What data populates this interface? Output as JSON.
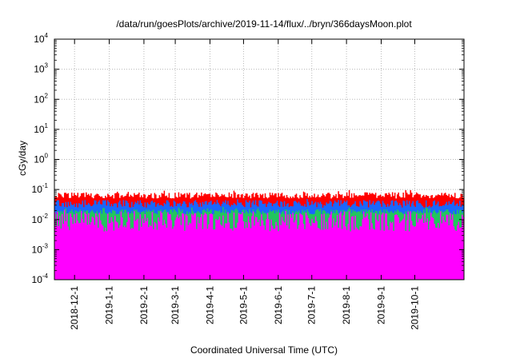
{
  "chart_data": {
    "type": "area",
    "title": "/data/run/goesPlots/archive/2019-11-14/flux/../bryn/366daysMoon.plot",
    "xlabel": "Coordinated Universal Time (UTC)",
    "ylabel": "cGy/day",
    "yscale": "log",
    "ylim": [
      0.0001,
      10000
    ],
    "xlim": [
      "2018-11-13",
      "2019-11-14"
    ],
    "grid": true,
    "y_ticks": [
      {
        "mantissa": "10",
        "exp": "-4"
      },
      {
        "mantissa": "10",
        "exp": "-3"
      },
      {
        "mantissa": "10",
        "exp": "-2"
      },
      {
        "mantissa": "10",
        "exp": "-1"
      },
      {
        "mantissa": "10",
        "exp": "0"
      },
      {
        "mantissa": "10",
        "exp": "1"
      },
      {
        "mantissa": "10",
        "exp": "2"
      },
      {
        "mantissa": "10",
        "exp": "3"
      },
      {
        "mantissa": "10",
        "exp": "4"
      }
    ],
    "x_ticks": [
      "2018-12-1",
      "2019-1-1",
      "2019-2-1",
      "2019-3-1",
      "2019-4-1",
      "2019-5-1",
      "2019-6-1",
      "2019-7-1",
      "2019-8-1",
      "2019-9-1",
      "2019-10-1"
    ],
    "series": [
      {
        "color": "#ff0000",
        "typical_low": 0.05,
        "typical_high": 0.08
      },
      {
        "color": "#1a66ff",
        "typical_low": 0.025,
        "typical_high": 0.045
      },
      {
        "color": "#22c55e",
        "typical_low": 0.015,
        "typical_high": 0.022
      },
      {
        "color": "#ff00ff",
        "typical_low": 0.004,
        "typical_high": 0.02
      }
    ],
    "magenta_dips": [
      {
        "date": "2018-11-30",
        "value": 0.0001
      },
      {
        "date": "2019-01-01",
        "value": 0.00022
      },
      {
        "date": "2019-03-01",
        "value": 0.0021
      },
      {
        "date": "2019-04-22",
        "value": 0.0017
      },
      {
        "date": "2019-05-22",
        "value": 0.00024
      },
      {
        "date": "2019-09-29",
        "value": 0.0033
      },
      {
        "date": "2019-10-05",
        "value": 0.0016
      }
    ]
  }
}
